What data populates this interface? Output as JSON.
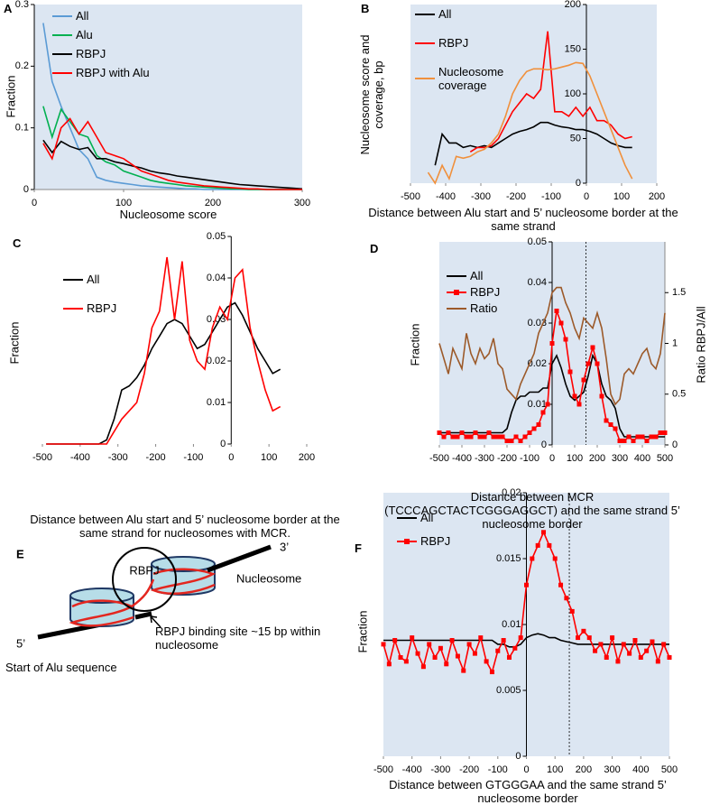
{
  "chart_data": [
    {
      "type": "line",
      "panel_label": "A",
      "x_label": "Nucleosome score",
      "y_label": "Fraction",
      "x": [
        10,
        20,
        30,
        40,
        50,
        60,
        70,
        80,
        90,
        100,
        110,
        120,
        130,
        140,
        150,
        160,
        170,
        180,
        190,
        200,
        210,
        220,
        230,
        240,
        250,
        260,
        270,
        280,
        290,
        300
      ],
      "xlim": [
        0,
        300
      ],
      "xticks": [
        0,
        100,
        200,
        300
      ],
      "ylim": [
        0,
        0.3
      ],
      "yticks": [
        0,
        0.1,
        0.2,
        0.3
      ],
      "legend": "upper-left",
      "plot_background": "#dce6f2",
      "series": [
        {
          "name": "All",
          "color": "#5b9bd5",
          "values": [
            0.27,
            0.175,
            0.135,
            0.1,
            0.065,
            0.05,
            0.02,
            0.015,
            0.012,
            0.01,
            0.008,
            0.006,
            0.005,
            0.004,
            0.003,
            0.002,
            0.001,
            0.001,
            0,
            0,
            0,
            0,
            0,
            0,
            0,
            0,
            0,
            0,
            0,
            0
          ]
        },
        {
          "name": "Alu",
          "color": "#00b050",
          "values": [
            0.135,
            0.085,
            0.13,
            0.11,
            0.09,
            0.085,
            0.055,
            0.045,
            0.04,
            0.03,
            0.025,
            0.02,
            0.015,
            0.012,
            0.01,
            0.008,
            0.006,
            0.005,
            0.004,
            0.003,
            0.002,
            0.001,
            0.001,
            0,
            0,
            0,
            0,
            0,
            0,
            0
          ]
        },
        {
          "name": "RBPJ",
          "color": "#000000",
          "values": [
            0.08,
            0.06,
            0.078,
            0.07,
            0.065,
            0.068,
            0.05,
            0.05,
            0.045,
            0.042,
            0.038,
            0.035,
            0.03,
            0.027,
            0.025,
            0.022,
            0.02,
            0.018,
            0.016,
            0.014,
            0.012,
            0.01,
            0.008,
            0.007,
            0.006,
            0.005,
            0.004,
            0.003,
            0.002,
            0.001
          ]
        },
        {
          "name": "RBPJ with Alu",
          "color": "#ff0000",
          "values": [
            0.075,
            0.05,
            0.1,
            0.115,
            0.09,
            0.11,
            0.085,
            0.06,
            0.055,
            0.05,
            0.04,
            0.03,
            0.025,
            0.02,
            0.015,
            0.012,
            0.01,
            0.008,
            0.006,
            0.005,
            0.004,
            0.003,
            0.002,
            0.001,
            0.001,
            0,
            0,
            0,
            0,
            0
          ]
        }
      ]
    },
    {
      "type": "line",
      "panel_label": "B",
      "x_label": "Distance between Alu start and 5’ nucleosome border at the same strand",
      "y_label": "Nucleosome score and coverage, bp",
      "x": [
        -450,
        -430,
        -410,
        -390,
        -370,
        -350,
        -330,
        -310,
        -290,
        -270,
        -250,
        -230,
        -210,
        -190,
        -170,
        -150,
        -130,
        -110,
        -90,
        -70,
        -50,
        -30,
        -10,
        10,
        30,
        50,
        70,
        90,
        110,
        130
      ],
      "xlim": [
        -500,
        200
      ],
      "xticks": [
        -500,
        -400,
        -300,
        -200,
        -100,
        0,
        100,
        200
      ],
      "ylim": [
        0,
        200
      ],
      "yticks": [
        0,
        50,
        100,
        150,
        200
      ],
      "legend": "upper-left",
      "plot_background": "#dce6f2",
      "series": [
        {
          "name": "All",
          "color": "#000000",
          "values": [
            null,
            20,
            55,
            45,
            45,
            40,
            42,
            40,
            42,
            40,
            45,
            50,
            55,
            58,
            60,
            63,
            68,
            68,
            65,
            63,
            62,
            60,
            60,
            58,
            55,
            50,
            45,
            42,
            40,
            40
          ]
        },
        {
          "name": "RBPJ",
          "color": "#ff0000",
          "values": [
            null,
            null,
            null,
            null,
            null,
            null,
            35,
            40,
            40,
            42,
            50,
            65,
            80,
            90,
            100,
            95,
            105,
            170,
            80,
            80,
            75,
            85,
            75,
            85,
            70,
            70,
            65,
            55,
            50,
            52
          ]
        },
        {
          "name": "Nucleosome coverage",
          "color": "#f0903c",
          "values": [
            12,
            0,
            20,
            5,
            30,
            28,
            30,
            35,
            38,
            45,
            55,
            75,
            100,
            115,
            125,
            128,
            128,
            127,
            128,
            130,
            132,
            135,
            134,
            120,
            100,
            80,
            60,
            40,
            20,
            5
          ]
        }
      ]
    },
    {
      "type": "line",
      "panel_label": "C",
      "x_label": "Distance between Alu start and 5’ nucleosome border at the same strand for nucleosomes with MCR.",
      "y_label": "Fraction",
      "x": [
        -490,
        -470,
        -450,
        -430,
        -410,
        -390,
        -370,
        -350,
        -330,
        -310,
        -290,
        -270,
        -250,
        -230,
        -210,
        -190,
        -170,
        -150,
        -130,
        -110,
        -90,
        -70,
        -50,
        -30,
        -10,
        10,
        30,
        50,
        70,
        90,
        110,
        130
      ],
      "xlim": [
        -500,
        200
      ],
      "xticks": [
        -500,
        -400,
        -300,
        -200,
        -100,
        0,
        100,
        200
      ],
      "ylim": [
        0,
        0.05
      ],
      "yticks": [
        0,
        0.01,
        0.02,
        0.03,
        0.04,
        0.05
      ],
      "legend": "upper-left",
      "series": [
        {
          "name": "All",
          "color": "#000000",
          "values": [
            0,
            0,
            0,
            0,
            0,
            0,
            0,
            0,
            0.001,
            0.006,
            0.013,
            0.014,
            0.016,
            0.019,
            0.023,
            0.026,
            0.029,
            0.03,
            0.029,
            0.026,
            0.023,
            0.024,
            0.027,
            0.03,
            0.033,
            0.034,
            0.031,
            0.027,
            0.023,
            0.02,
            0.017,
            0.018
          ]
        },
        {
          "name": "RBPJ",
          "color": "#ff0000",
          "values": [
            0,
            0,
            0,
            0,
            0,
            0,
            0,
            0,
            0,
            0.003,
            0.006,
            0.008,
            0.01,
            0.017,
            0.028,
            0.032,
            0.045,
            0.03,
            0.044,
            0.025,
            0.02,
            0.018,
            0.028,
            0.033,
            0.03,
            0.04,
            0.042,
            0.028,
            0.02,
            0.013,
            0.008,
            0.009
          ]
        }
      ]
    },
    {
      "type": "line",
      "panel_label": "D",
      "x_label": "Distance between MCR (TCCCAGCTACTCGGGAGGCT) and the same strand 5’ nucleosome border",
      "y_label": "Fraction",
      "y2_label": "Ratio RBPJ/All",
      "x": [
        -500,
        -480,
        -460,
        -440,
        -420,
        -400,
        -380,
        -360,
        -340,
        -320,
        -300,
        -280,
        -260,
        -240,
        -220,
        -200,
        -180,
        -160,
        -140,
        -120,
        -100,
        -80,
        -60,
        -40,
        -20,
        0,
        20,
        40,
        60,
        80,
        100,
        120,
        140,
        160,
        180,
        200,
        220,
        240,
        260,
        280,
        300,
        320,
        340,
        360,
        380,
        400,
        420,
        440,
        460,
        480,
        500
      ],
      "xlim": [
        -500,
        500
      ],
      "xticks": [
        -500,
        -400,
        -300,
        -200,
        -100,
        0,
        100,
        200,
        300,
        400,
        500
      ],
      "ylim": [
        0,
        0.05
      ],
      "yticks": [
        0,
        0.01,
        0.02,
        0.03,
        0.04,
        0.05
      ],
      "y2lim": [
        0,
        2
      ],
      "y2ticks": [
        0,
        0.5,
        1,
        1.5
      ],
      "vlines": [
        150
      ],
      "legend": "upper-left",
      "plot_background": "#dce6f2",
      "series": [
        {
          "name": "All",
          "color": "#000000",
          "values": [
            0.003,
            0.003,
            0.003,
            0.003,
            0.003,
            0.003,
            0.003,
            0.003,
            0.003,
            0.003,
            0.003,
            0.003,
            0.003,
            0.003,
            0.003,
            0.004,
            0.008,
            0.011,
            0.012,
            0.012,
            0.013,
            0.013,
            0.013,
            0.014,
            0.014,
            0.02,
            0.022,
            0.019,
            0.015,
            0.012,
            0.011,
            0.012,
            0.013,
            0.017,
            0.022,
            0.02,
            0.015,
            0.012,
            0.011,
            0.009,
            0.004,
            0.002,
            0.002,
            0.002,
            0.002,
            0.002,
            0.002,
            0.002,
            0.002,
            0.002,
            0.002
          ]
        },
        {
          "name": "RBPJ",
          "color": "#ff0000",
          "marker": "square",
          "values": [
            0.003,
            0.002,
            0.003,
            0.002,
            0.002,
            0.003,
            0.002,
            0.002,
            0.003,
            0.002,
            0.002,
            0.003,
            0.002,
            0.002,
            0.002,
            0.001,
            0.001,
            0.002,
            0.001,
            0.002,
            0.003,
            0.004,
            0.005,
            0.008,
            0.01,
            0.025,
            0.033,
            0.03,
            0.026,
            0.018,
            0.012,
            0.01,
            0.016,
            0.02,
            0.024,
            0.02,
            0.012,
            0.006,
            0.005,
            0.004,
            0.001,
            0.001,
            0.002,
            0.001,
            0.002,
            0.002,
            0.001,
            0.002,
            0.002,
            0.003,
            0.003
          ]
        },
        {
          "name": "Ratio",
          "color": "#9c5a2a",
          "axis": "y2",
          "values": [
            1.0,
            0.85,
            0.7,
            0.95,
            0.85,
            0.75,
            1.1,
            0.9,
            0.8,
            0.95,
            0.85,
            0.9,
            1.05,
            0.8,
            0.75,
            0.55,
            0.5,
            0.45,
            0.6,
            0.7,
            0.8,
            0.9,
            1.1,
            1.2,
            1.3,
            1.5,
            1.55,
            1.55,
            1.4,
            1.3,
            1.15,
            1.05,
            1.25,
            1.2,
            1.15,
            1.3,
            1.15,
            0.85,
            0.5,
            0.4,
            0.45,
            0.7,
            0.75,
            0.7,
            0.8,
            0.9,
            0.95,
            0.8,
            0.75,
            0.9,
            1.3
          ]
        }
      ]
    },
    {
      "type": "line",
      "panel_label": "F",
      "x_label": "Distance between GTGGGAA and the same strand 5’ nucleosome border",
      "y_label": "Fraction",
      "x": [
        -500,
        -480,
        -460,
        -440,
        -420,
        -400,
        -380,
        -360,
        -340,
        -320,
        -300,
        -280,
        -260,
        -240,
        -220,
        -200,
        -180,
        -160,
        -140,
        -120,
        -100,
        -80,
        -60,
        -40,
        -20,
        0,
        20,
        40,
        60,
        80,
        100,
        120,
        140,
        160,
        180,
        200,
        220,
        240,
        260,
        280,
        300,
        320,
        340,
        360,
        380,
        400,
        420,
        440,
        460,
        480,
        500
      ],
      "xlim": [
        -500,
        500
      ],
      "xticks": [
        -500,
        -400,
        -300,
        -200,
        -100,
        0,
        100,
        200,
        300,
        400,
        500
      ],
      "ylim": [
        0,
        0.02
      ],
      "yticks": [
        0,
        0.005,
        0.01,
        0.015,
        0.02
      ],
      "vlines": [
        150
      ],
      "legend": "upper-left",
      "plot_background": "#dce6f2",
      "series": [
        {
          "name": "All",
          "color": "#000000",
          "values": [
            0.0088,
            0.0088,
            0.0088,
            0.0088,
            0.0088,
            0.0088,
            0.0088,
            0.0088,
            0.0088,
            0.0088,
            0.0088,
            0.0088,
            0.0088,
            0.0088,
            0.0088,
            0.0088,
            0.0088,
            0.0088,
            0.0088,
            0.0088,
            0.0085,
            0.0085,
            0.0083,
            0.0083,
            0.0085,
            0.009,
            0.0092,
            0.0093,
            0.0092,
            0.009,
            0.009,
            0.0088,
            0.0087,
            0.0086,
            0.0085,
            0.0085,
            0.0085,
            0.0085,
            0.0085,
            0.0085,
            0.0085,
            0.0085,
            0.0085,
            0.0085,
            0.0085,
            0.0085,
            0.0085,
            0.0085,
            0.0085,
            0.0085,
            0.0085
          ]
        },
        {
          "name": "RBPJ",
          "color": "#ff0000",
          "marker": "square",
          "values": [
            0.0085,
            0.007,
            0.0088,
            0.0075,
            0.0072,
            0.009,
            0.0078,
            0.0068,
            0.0085,
            0.0075,
            0.0082,
            0.007,
            0.0088,
            0.0076,
            0.0065,
            0.0085,
            0.0078,
            0.009,
            0.0072,
            0.0064,
            0.008,
            0.0088,
            0.0075,
            0.0082,
            0.009,
            0.013,
            0.015,
            0.016,
            0.017,
            0.016,
            0.015,
            0.013,
            0.012,
            0.011,
            0.009,
            0.0095,
            0.009,
            0.008,
            0.0085,
            0.0075,
            0.009,
            0.0072,
            0.0085,
            0.0078,
            0.0088,
            0.0075,
            0.008,
            0.0087,
            0.0072,
            0.0085,
            0.0075
          ]
        }
      ]
    }
  ],
  "diagram": {
    "panel_label": "E",
    "protein": "RBPJ",
    "three_prime": "3’",
    "five_prime": "5’",
    "nucleosome": "Nucleosome",
    "binding_site": "RBPJ binding site ~15 bp within nucleosome",
    "alu_start": "Start of Alu sequence"
  }
}
